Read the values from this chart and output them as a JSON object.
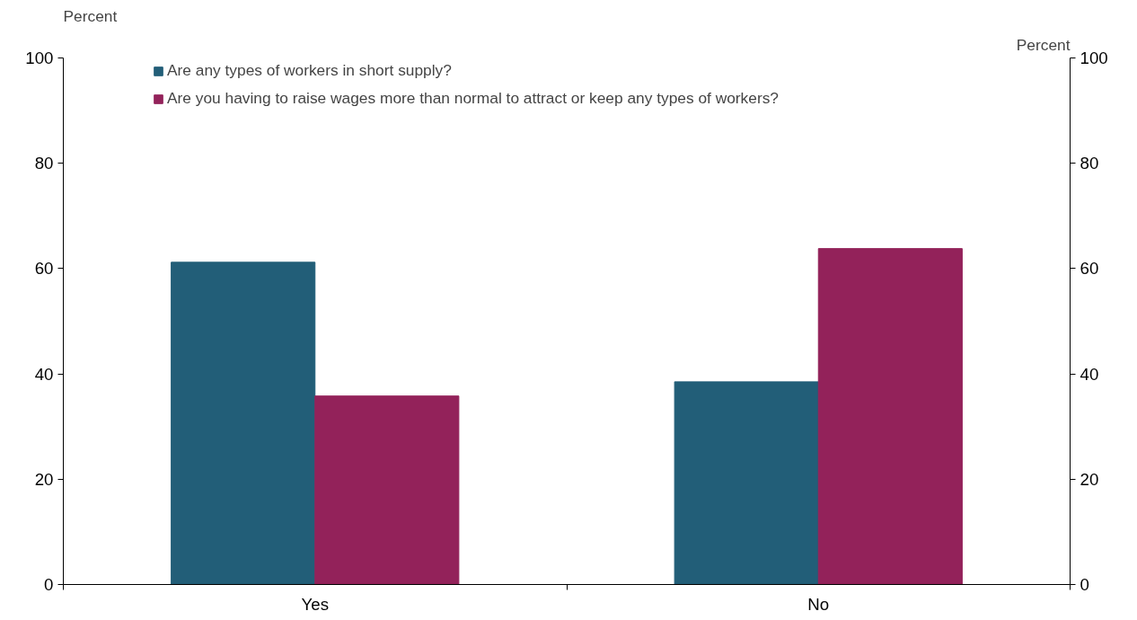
{
  "chart_data": {
    "type": "bar",
    "ylabel": "Percent",
    "y2label": "Percent",
    "categories": [
      "Yes",
      "No"
    ],
    "series": [
      {
        "name": "Are any types of workers in short supply?",
        "color": "#225e78",
        "values": [
          61.2,
          38.5
        ]
      },
      {
        "name": "Are you having to raise wages more than normal to attract or keep any types of workers?",
        "color": "#93225a",
        "values": [
          35.8,
          63.8
        ]
      }
    ],
    "ylim": [
      0,
      100
    ],
    "yticks": [
      0,
      20,
      40,
      60,
      80,
      100
    ],
    "y2lim": [
      0,
      100
    ],
    "y2ticks": [
      0,
      20,
      40,
      60,
      80,
      100
    ],
    "grid": false,
    "legend": "top left"
  }
}
